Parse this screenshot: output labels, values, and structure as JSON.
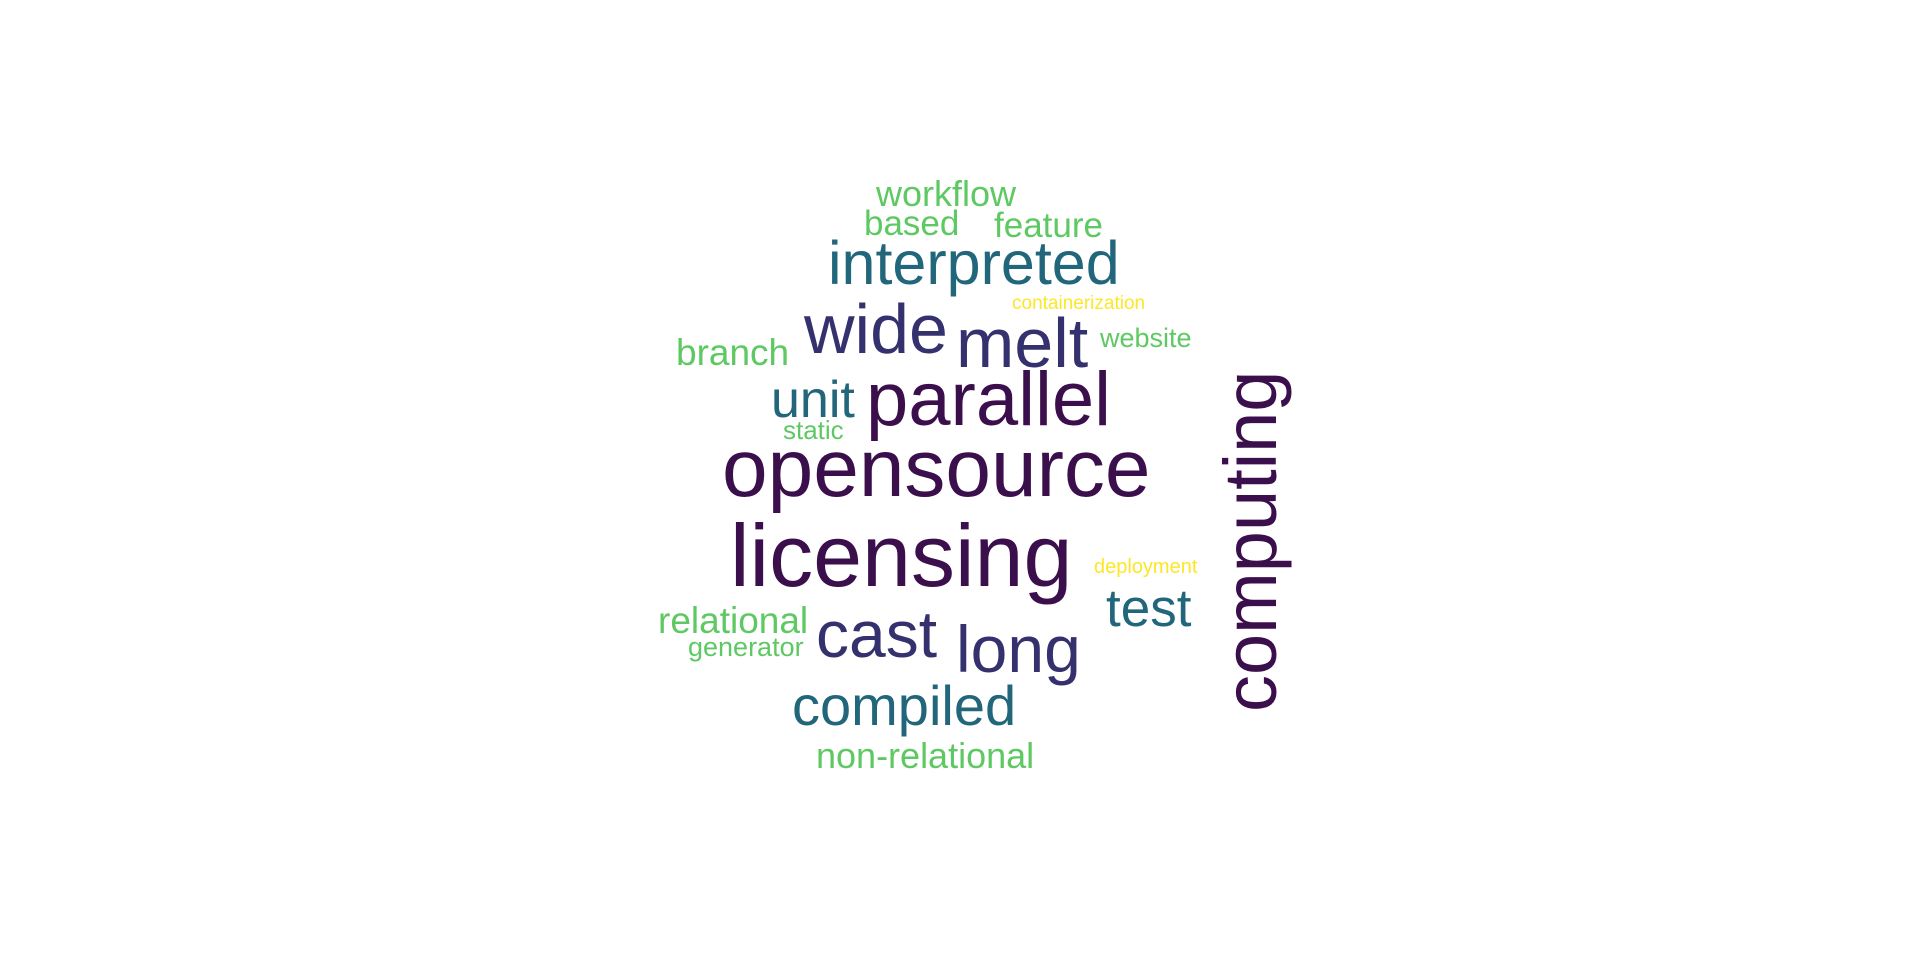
{
  "wordcloud": {
    "words": [
      {
        "text": "workflow",
        "color": "#5ec962"
      },
      {
        "text": "based",
        "color": "#5ec962"
      },
      {
        "text": "feature",
        "color": "#5ec962"
      },
      {
        "text": "interpreted",
        "color": "#21667a"
      },
      {
        "text": "containerization",
        "color": "#fde725"
      },
      {
        "text": "wide",
        "color": "#35306e"
      },
      {
        "text": "melt",
        "color": "#35306e"
      },
      {
        "text": "website",
        "color": "#5ec962"
      },
      {
        "text": "branch",
        "color": "#5ec962"
      },
      {
        "text": "unit",
        "color": "#21667a"
      },
      {
        "text": "parallel",
        "color": "#3b0e4c"
      },
      {
        "text": "static",
        "color": "#5ec962"
      },
      {
        "text": "opensource",
        "color": "#3b0e4c"
      },
      {
        "text": "computing",
        "color": "#3b0e4c"
      },
      {
        "text": "licensing",
        "color": "#3b0e4c"
      },
      {
        "text": "deployment",
        "color": "#fde725"
      },
      {
        "text": "test",
        "color": "#21667a"
      },
      {
        "text": "relational",
        "color": "#5ec962"
      },
      {
        "text": "generator",
        "color": "#5ec962"
      },
      {
        "text": "cast",
        "color": "#35306e"
      },
      {
        "text": "long",
        "color": "#35306e"
      },
      {
        "text": "compiled",
        "color": "#21667a"
      },
      {
        "text": "non-relational",
        "color": "#5ec962"
      }
    ]
  }
}
